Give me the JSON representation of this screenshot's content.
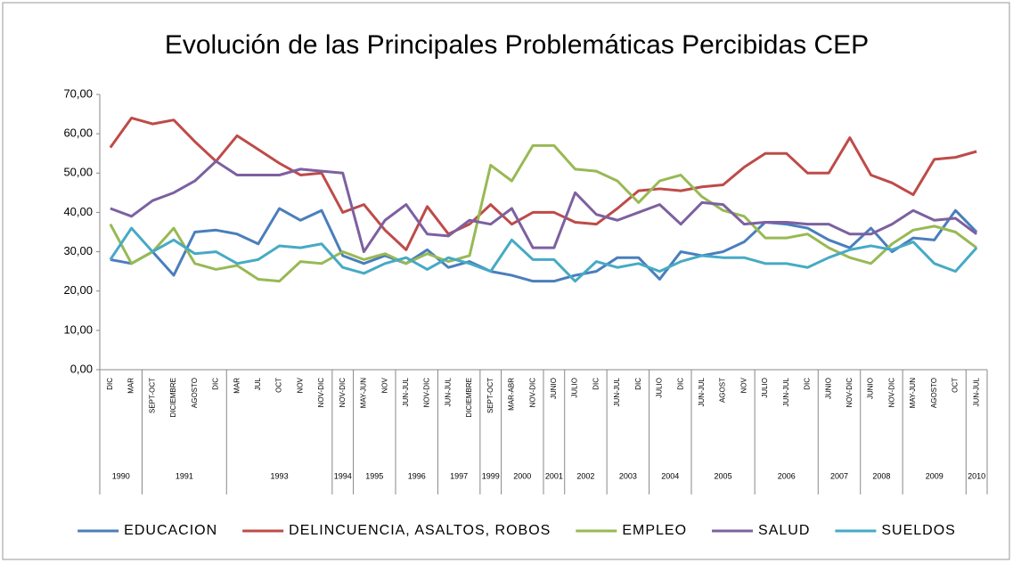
{
  "chart_data": {
    "type": "line",
    "title": "Evolución de las Principales Problemáticas Percibidas CEP",
    "categories": [
      "DIC",
      "MAR",
      "SEPT-OCT",
      "DICIEMBRE",
      "AGOSTO",
      "DIC",
      "MAR",
      "JUL",
      "OCT",
      "NOV",
      "NOV-DIC",
      "NOV-DIC",
      "MAY-JUN",
      "NOV",
      "JUN-JUL",
      "NOV-DIC",
      "JUN-JUL",
      "DICIEMBRE",
      "SEPT-OCT",
      "MAR-ABR",
      "NOV-DIC",
      "JUNIO",
      "JULIO",
      "DIC",
      "JUN-JUL",
      "DIC",
      "JULIO",
      "DIC",
      "JUN-JUL",
      "AGOST",
      "NOV",
      "JULIO",
      "JUN-JUL",
      "DIC",
      "JUNIO",
      "NOV-DIC",
      "JUNIO",
      "NOV-DIC",
      "MAY-JUN",
      "AGOSTO",
      "OCT",
      "JUN-JUL"
    ],
    "groups": [
      {
        "label": "1990",
        "count": 2
      },
      {
        "label": "1991",
        "count": 4
      },
      {
        "label": "1993",
        "count": 5
      },
      {
        "label": "1994",
        "count": 1
      },
      {
        "label": "1995",
        "count": 2
      },
      {
        "label": "1996",
        "count": 2
      },
      {
        "label": "1997",
        "count": 2
      },
      {
        "label": "1999",
        "count": 1
      },
      {
        "label": "2000",
        "count": 2
      },
      {
        "label": "2001",
        "count": 1
      },
      {
        "label": "2002",
        "count": 2
      },
      {
        "label": "2003",
        "count": 2
      },
      {
        "label": "2004",
        "count": 2
      },
      {
        "label": "2005",
        "count": 3
      },
      {
        "label": "2006",
        "count": 3
      },
      {
        "label": "2007",
        "count": 2
      },
      {
        "label": "2008",
        "count": 2
      },
      {
        "label": "2009",
        "count": 3
      },
      {
        "label": "2010",
        "count": 1
      }
    ],
    "series": [
      {
        "name": "EDUCACION",
        "color": "#4a7ebb",
        "values": [
          28,
          27,
          30,
          24,
          35,
          35.5,
          34.5,
          32,
          41,
          38,
          40.5,
          29,
          27,
          29,
          27,
          30.5,
          26,
          27.5,
          25,
          24,
          22.5,
          22.5,
          24,
          25,
          28.5,
          28.5,
          23,
          30,
          29,
          30,
          32.5,
          37.5,
          37,
          36,
          33,
          31,
          36,
          30,
          33.5,
          33,
          40.5,
          35
        ]
      },
      {
        "name": "DELINCUENCIA, ASALTOS, ROBOS",
        "color": "#be4b48",
        "values": [
          56.5,
          64,
          62.5,
          63.5,
          58,
          53,
          59.5,
          56,
          52.5,
          49.5,
          50,
          40,
          42,
          35.5,
          30.5,
          41.5,
          34.5,
          37,
          42,
          37,
          40,
          40,
          37.5,
          37,
          41,
          45.5,
          46,
          45.5,
          46.5,
          47,
          51.5,
          55,
          55,
          50,
          50,
          59,
          49.5,
          47.5,
          44.5,
          53.5,
          54,
          55.5
        ]
      },
      {
        "name": "EMPLEO",
        "color": "#98b954",
        "values": [
          37,
          27,
          30,
          36,
          27,
          25.5,
          26.5,
          23,
          22.5,
          27.5,
          27,
          30,
          28,
          29.5,
          27,
          29.5,
          27.5,
          29,
          52,
          48,
          57,
          57,
          51,
          50.5,
          48,
          42.5,
          48,
          49.5,
          44,
          40.5,
          39,
          33.5,
          33.5,
          34.5,
          31,
          28.5,
          27,
          32,
          35.5,
          36.5,
          35,
          31
        ]
      },
      {
        "name": "SALUD",
        "color": "#7d60a0",
        "values": [
          41,
          39,
          43,
          45,
          48,
          53,
          49.5,
          49.5,
          49.5,
          51,
          50.5,
          50,
          30,
          38,
          42,
          34.5,
          34,
          38,
          37,
          41,
          31,
          31,
          45,
          39.5,
          38,
          40,
          42,
          37,
          42.5,
          42,
          37,
          37.5,
          37.5,
          37,
          37,
          34.5,
          34.5,
          37,
          40.5,
          38,
          38.5,
          34.5
        ]
      },
      {
        "name": "SUELDOS",
        "color": "#46aac5",
        "values": [
          28,
          36,
          30,
          33,
          29.5,
          30,
          27,
          28,
          31.5,
          31,
          32,
          26,
          24.5,
          27,
          28.5,
          25.5,
          28.5,
          27,
          25,
          33,
          28,
          28,
          22.5,
          27.5,
          26,
          27,
          25,
          27.5,
          29,
          28.5,
          28.5,
          27,
          27,
          26,
          28.5,
          30.5,
          31.5,
          30.5,
          32.5,
          27,
          25,
          31
        ]
      }
    ],
    "ylim": [
      0,
      70
    ],
    "yticks": [
      {
        "value": 0,
        "label": "0,00"
      },
      {
        "value": 10,
        "label": "10,00"
      },
      {
        "value": 20,
        "label": "20,00"
      },
      {
        "value": 30,
        "label": "30,00"
      },
      {
        "value": 40,
        "label": "40,00"
      },
      {
        "value": 50,
        "label": "50,00"
      },
      {
        "value": 60,
        "label": "60,00"
      },
      {
        "value": 70,
        "label": "70,00"
      }
    ],
    "grid": false,
    "legend": "bottom"
  }
}
